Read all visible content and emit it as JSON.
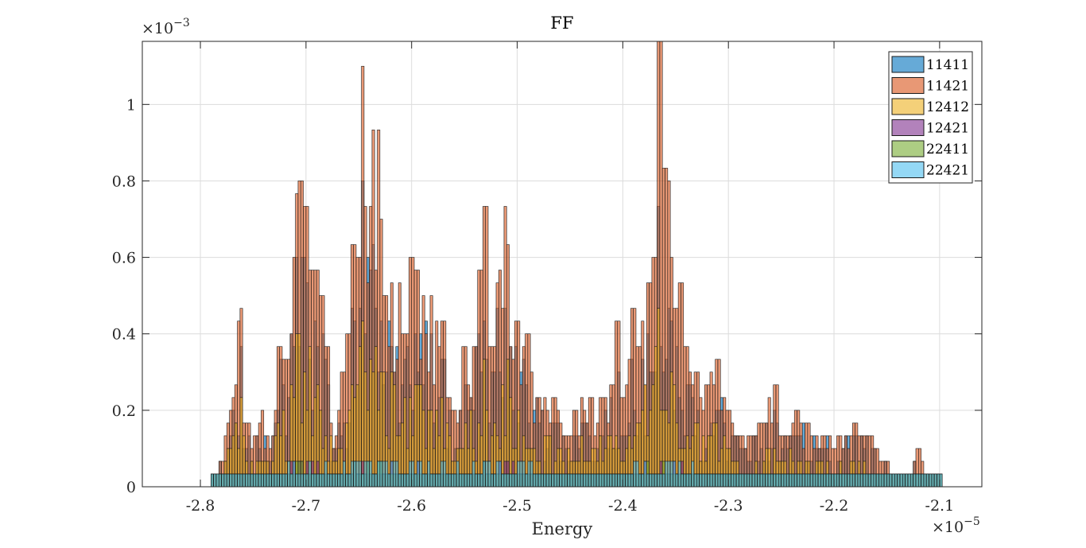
{
  "chart_data": {
    "type": "bar",
    "title": "FF",
    "xlabel": "Energy",
    "ylabel": "",
    "x_exponent_label": "×10",
    "x_exponent": "−5",
    "y_exponent_label": "×10",
    "y_exponent": "−3",
    "xlim": [
      -2.855,
      -2.06
    ],
    "ylim": [
      0,
      1.165
    ],
    "xticks": [
      -2.8,
      -2.7,
      -2.6,
      -2.5,
      -2.4,
      -2.3,
      -2.2,
      -2.1
    ],
    "xtick_labels": [
      "-2.8",
      "-2.7",
      "-2.6",
      "-2.5",
      "-2.4",
      "-2.3",
      "-2.2",
      "-2.1"
    ],
    "yticks": [
      0,
      0.2,
      0.4,
      0.6,
      0.8,
      1
    ],
    "ytick_labels": [
      "0",
      "0.2",
      "0.4",
      "0.6",
      "0.8",
      "1"
    ],
    "grid": true,
    "legend_position": "top-right",
    "bin_width": 0.0025,
    "bin_start": -2.79,
    "series": [
      {
        "name": "11411",
        "color": "#0072BD"
      },
      {
        "name": "11421",
        "color": "#D95319"
      },
      {
        "name": "12412",
        "color": "#EDB120"
      },
      {
        "name": "12421",
        "color": "#7E2F8E"
      },
      {
        "name": "22411",
        "color": "#77AC30"
      },
      {
        "name": "22421",
        "color": "#4DBEEE"
      }
    ],
    "envelope_peaks": [
      {
        "x": -2.788,
        "y": 0.033
      },
      {
        "x": -2.782,
        "y": 0.067
      },
      {
        "x": -2.777,
        "y": 0.133
      },
      {
        "x": -2.762,
        "y": 0.467
      },
      {
        "x": -2.755,
        "y": 0.167
      },
      {
        "x": -2.747,
        "y": 0.133
      },
      {
        "x": -2.742,
        "y": 0.2
      },
      {
        "x": -2.732,
        "y": 0.133
      },
      {
        "x": -2.725,
        "y": 0.367
      },
      {
        "x": -2.72,
        "y": 0.333
      },
      {
        "x": -2.712,
        "y": 0.6
      },
      {
        "x": -2.708,
        "y": 0.767
      },
      {
        "x": -2.705,
        "y": 0.8
      },
      {
        "x": -2.7,
        "y": 0.733
      },
      {
        "x": -2.698,
        "y": 0.867
      },
      {
        "x": -2.695,
        "y": 0.567
      },
      {
        "x": -2.69,
        "y": 0.567
      },
      {
        "x": -2.685,
        "y": 0.5
      },
      {
        "x": -2.68,
        "y": 0.367
      },
      {
        "x": -2.672,
        "y": 0.133
      },
      {
        "x": -2.665,
        "y": 0.3
      },
      {
        "x": -2.66,
        "y": 0.4
      },
      {
        "x": -2.655,
        "y": 0.633
      },
      {
        "x": -2.65,
        "y": 0.6
      },
      {
        "x": -2.647,
        "y": 1.1
      },
      {
        "x": -2.643,
        "y": 0.733
      },
      {
        "x": -2.637,
        "y": 0.933
      },
      {
        "x": -2.632,
        "y": 0.933
      },
      {
        "x": -2.625,
        "y": 0.5
      },
      {
        "x": -2.618,
        "y": 0.533
      },
      {
        "x": -2.612,
        "y": 0.533
      },
      {
        "x": -2.605,
        "y": 0.4
      },
      {
        "x": -2.6,
        "y": 0.6
      },
      {
        "x": -2.595,
        "y": 0.567
      },
      {
        "x": -2.588,
        "y": 0.5
      },
      {
        "x": -2.582,
        "y": 0.5
      },
      {
        "x": -2.577,
        "y": 0.433
      },
      {
        "x": -2.57,
        "y": 0.433
      },
      {
        "x": -2.56,
        "y": 0.2
      },
      {
        "x": -2.55,
        "y": 0.367
      },
      {
        "x": -2.542,
        "y": 0.367
      },
      {
        "x": -2.535,
        "y": 0.567
      },
      {
        "x": -2.53,
        "y": 0.733
      },
      {
        "x": -2.525,
        "y": 0.367
      },
      {
        "x": -2.518,
        "y": 0.533
      },
      {
        "x": -2.512,
        "y": 0.733
      },
      {
        "x": -2.508,
        "y": 0.633
      },
      {
        "x": -2.5,
        "y": 0.433
      },
      {
        "x": -2.49,
        "y": 0.4
      },
      {
        "x": -2.48,
        "y": 0.233
      },
      {
        "x": -2.465,
        "y": 0.233
      },
      {
        "x": -2.458,
        "y": 0.167
      },
      {
        "x": -2.445,
        "y": 0.2
      },
      {
        "x": -2.438,
        "y": 0.233
      },
      {
        "x": -2.43,
        "y": 0.233
      },
      {
        "x": -2.42,
        "y": 0.233
      },
      {
        "x": -2.41,
        "y": 0.267
      },
      {
        "x": -2.405,
        "y": 0.433
      },
      {
        "x": -2.398,
        "y": 0.233
      },
      {
        "x": -2.39,
        "y": 0.467
      },
      {
        "x": -2.385,
        "y": 0.367
      },
      {
        "x": -2.375,
        "y": 0.533
      },
      {
        "x": -2.37,
        "y": 0.6
      },
      {
        "x": -2.368,
        "y": 0.9
      },
      {
        "x": -2.365,
        "y": 1.16
      },
      {
        "x": -2.36,
        "y": 0.833
      },
      {
        "x": -2.357,
        "y": 0.8
      },
      {
        "x": -2.35,
        "y": 0.467
      },
      {
        "x": -2.345,
        "y": 0.533
      },
      {
        "x": -2.34,
        "y": 0.367
      },
      {
        "x": -2.33,
        "y": 0.3
      },
      {
        "x": -2.32,
        "y": 0.267
      },
      {
        "x": -2.31,
        "y": 0.333
      },
      {
        "x": -2.3,
        "y": 0.2
      },
      {
        "x": -2.29,
        "y": 0.133
      },
      {
        "x": -2.28,
        "y": 0.133
      },
      {
        "x": -2.27,
        "y": 0.167
      },
      {
        "x": -2.255,
        "y": 0.267
      },
      {
        "x": -2.245,
        "y": 0.133
      },
      {
        "x": -2.235,
        "y": 0.2
      },
      {
        "x": -2.225,
        "y": 0.167
      },
      {
        "x": -2.21,
        "y": 0.133
      },
      {
        "x": -2.195,
        "y": 0.133
      },
      {
        "x": -2.18,
        "y": 0.167
      },
      {
        "x": -2.165,
        "y": 0.133
      },
      {
        "x": -2.15,
        "y": 0.067
      },
      {
        "x": -2.135,
        "y": 0.033
      },
      {
        "x": -2.12,
        "y": 0.1
      },
      {
        "x": -2.105,
        "y": 0.033
      }
    ]
  }
}
